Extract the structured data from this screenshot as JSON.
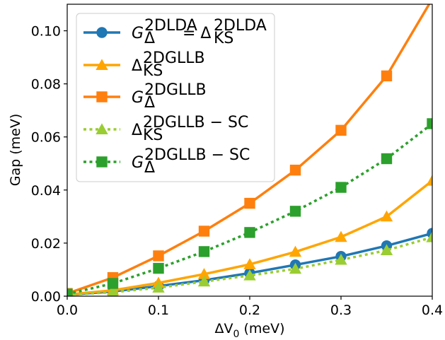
{
  "chart_data": {
    "type": "line",
    "xlabel": "ΔV0 (meV)",
    "ylabel": "Gap (meV)",
    "xlim": [
      0.0,
      0.4
    ],
    "ylim": [
      0.0,
      0.11
    ],
    "x_ticks": [
      "0.0",
      "0.1",
      "0.2",
      "0.3",
      "0.4"
    ],
    "y_ticks": [
      "0.00",
      "0.02",
      "0.04",
      "0.06",
      "0.08",
      "0.10"
    ],
    "grid": false,
    "legend_position": "top-left",
    "x": [
      0.0,
      0.05,
      0.1,
      0.15,
      0.2,
      0.25,
      0.3,
      0.35,
      0.4
    ],
    "series": [
      {
        "name": "G_Δ^2DLDA = Δ_KS^2DLDA",
        "legend": {
          "base": "G",
          "sub": "Δ",
          "sup": "2DLDA",
          "eq_base": "Δ",
          "eq_sub": "KS",
          "eq_sup": "2DLDA"
        },
        "color": "#1f77b4",
        "marker": "circle",
        "line": "solid",
        "values": [
          0.0005,
          0.0018,
          0.0038,
          0.006,
          0.0087,
          0.0118,
          0.015,
          0.019,
          0.0237
        ]
      },
      {
        "name": "Δ_KS^2DGLLB",
        "legend": {
          "base": "Δ",
          "sub": "KS",
          "sup": "2DGLLB"
        },
        "color": "#ffa500",
        "marker": "triangle",
        "line": "solid",
        "values": [
          0.0006,
          0.0022,
          0.005,
          0.0083,
          0.012,
          0.0167,
          0.0223,
          0.03,
          0.0435
        ]
      },
      {
        "name": "G_Δ^2DGLLB",
        "legend": {
          "base": "G",
          "sub": "Δ",
          "sup": "2DGLLB"
        },
        "color": "#ff7f0e",
        "marker": "square",
        "line": "solid",
        "values": [
          0.001,
          0.007,
          0.0152,
          0.0245,
          0.035,
          0.0475,
          0.0625,
          0.083,
          0.112
        ]
      },
      {
        "name": "Δ_KS^2DGLLB−SC",
        "legend": {
          "base": "Δ",
          "sub": "KS",
          "sup": "2DGLLB − SC"
        },
        "color": "#9acd32",
        "marker": "triangle",
        "line": "dotted",
        "values": [
          0.0005,
          0.0015,
          0.0032,
          0.0055,
          0.0078,
          0.0103,
          0.0137,
          0.0173,
          0.0222
        ]
      },
      {
        "name": "G_Δ^2DGLLB−SC",
        "legend": {
          "base": "G",
          "sub": "Δ",
          "sup": "2DGLLB − SC"
        },
        "color": "#2ca02c",
        "marker": "square",
        "line": "dotted",
        "values": [
          0.0008,
          0.0048,
          0.0105,
          0.0168,
          0.024,
          0.032,
          0.041,
          0.0518,
          0.065
        ]
      }
    ]
  }
}
